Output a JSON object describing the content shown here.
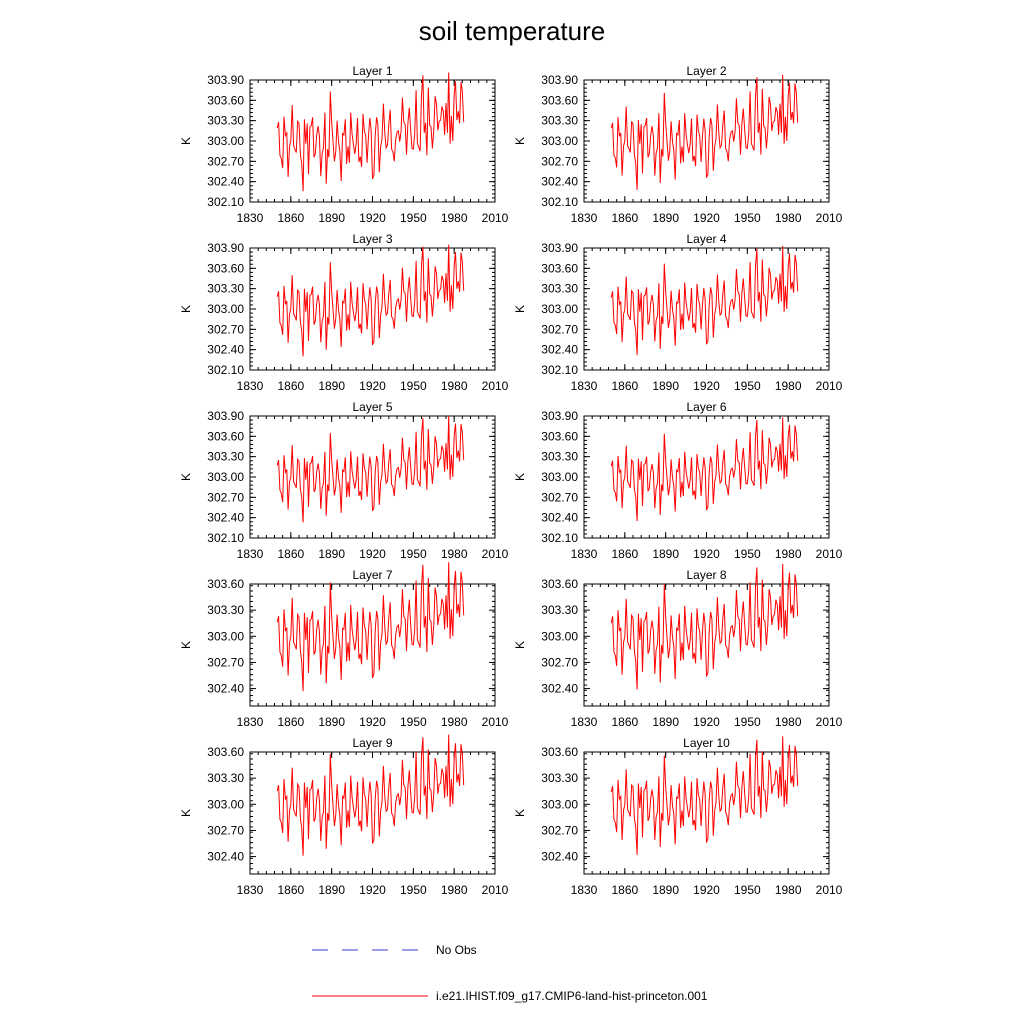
{
  "figure": {
    "title": "soil temperature"
  },
  "legend": {
    "position": "bottom",
    "entries": [
      {
        "label": "No Obs",
        "color": "#3b3bd9",
        "style": "dashed"
      },
      {
        "label": "i.e21.IHIST.f09_g17.CMIP6-land-hist-princeton.001",
        "color": "#ff0000",
        "style": "solid"
      }
    ]
  },
  "chart_data": [
    {
      "type": "line",
      "title": "Layer 1",
      "xlabel": "",
      "ylabel": "K",
      "xlim": [
        1830,
        2010
      ],
      "ylim": [
        302.1,
        303.9
      ],
      "xticks": [
        1830,
        1860,
        1890,
        1920,
        1950,
        1980,
        2010
      ],
      "yticks": [
        "302.10",
        "302.40",
        "302.70",
        "303.00",
        "303.30",
        "303.60",
        "303.90"
      ],
      "grid": false,
      "series": [
        {
          "color": "#ff0000",
          "x": [],
          "values": []
        }
      ]
    },
    {
      "type": "line",
      "title": "Layer 2",
      "xlabel": "",
      "ylabel": "K",
      "xlim": [
        1830,
        2010
      ],
      "ylim": [
        302.1,
        303.9
      ],
      "xticks": [
        1830,
        1860,
        1890,
        1920,
        1950,
        1980,
        2010
      ],
      "yticks": [
        "302.10",
        "302.40",
        "302.70",
        "303.00",
        "303.30",
        "303.60",
        "303.90"
      ],
      "grid": false,
      "series": [
        {
          "color": "#ff0000",
          "x": [],
          "values": []
        }
      ]
    },
    {
      "type": "line",
      "title": "Layer 3",
      "xlabel": "",
      "ylabel": "K",
      "xlim": [
        1830,
        2010
      ],
      "ylim": [
        302.1,
        303.9
      ],
      "xticks": [
        1830,
        1860,
        1890,
        1920,
        1950,
        1980,
        2010
      ],
      "yticks": [
        "302.10",
        "302.40",
        "302.70",
        "303.00",
        "303.30",
        "303.60",
        "303.90"
      ],
      "grid": false,
      "series": [
        {
          "color": "#ff0000",
          "x": [],
          "values": []
        }
      ]
    },
    {
      "type": "line",
      "title": "Layer 4",
      "xlabel": "",
      "ylabel": "K",
      "xlim": [
        1830,
        2010
      ],
      "ylim": [
        302.1,
        303.9
      ],
      "xticks": [
        1830,
        1860,
        1890,
        1920,
        1950,
        1980,
        2010
      ],
      "yticks": [
        "302.10",
        "302.40",
        "302.70",
        "303.00",
        "303.30",
        "303.60",
        "303.90"
      ],
      "grid": false,
      "series": [
        {
          "color": "#ff0000",
          "x": [],
          "values": []
        }
      ]
    },
    {
      "type": "line",
      "title": "Layer 5",
      "xlabel": "",
      "ylabel": "K",
      "xlim": [
        1830,
        2010
      ],
      "ylim": [
        302.1,
        303.9
      ],
      "xticks": [
        1830,
        1860,
        1890,
        1920,
        1950,
        1980,
        2010
      ],
      "yticks": [
        "302.10",
        "302.40",
        "302.70",
        "303.00",
        "303.30",
        "303.60",
        "303.90"
      ],
      "grid": false,
      "series": [
        {
          "color": "#ff0000",
          "x": [],
          "values": []
        }
      ]
    },
    {
      "type": "line",
      "title": "Layer 6",
      "xlabel": "",
      "ylabel": "K",
      "xlim": [
        1830,
        2010
      ],
      "ylim": [
        302.1,
        303.9
      ],
      "xticks": [
        1830,
        1860,
        1890,
        1920,
        1950,
        1980,
        2010
      ],
      "yticks": [
        "302.10",
        "302.40",
        "302.70",
        "303.00",
        "303.30",
        "303.60",
        "303.90"
      ],
      "grid": false,
      "series": [
        {
          "color": "#ff0000",
          "x": [],
          "values": []
        }
      ]
    },
    {
      "type": "line",
      "title": "Layer 7",
      "xlabel": "",
      "ylabel": "K",
      "xlim": [
        1830,
        2010
      ],
      "ylim": [
        302.2,
        303.6
      ],
      "xticks": [
        1830,
        1860,
        1890,
        1920,
        1950,
        1980,
        2010
      ],
      "yticks": [
        "302.40",
        "302.70",
        "303.00",
        "303.30",
        "303.60"
      ],
      "grid": false,
      "series": [
        {
          "color": "#ff0000",
          "x": [],
          "values": []
        }
      ]
    },
    {
      "type": "line",
      "title": "Layer 8",
      "xlabel": "",
      "ylabel": "K",
      "xlim": [
        1830,
        2010
      ],
      "ylim": [
        302.2,
        303.6
      ],
      "xticks": [
        1830,
        1860,
        1890,
        1920,
        1950,
        1980,
        2010
      ],
      "yticks": [
        "302.40",
        "302.70",
        "303.00",
        "303.30",
        "303.60"
      ],
      "grid": false,
      "series": [
        {
          "color": "#ff0000",
          "x": [],
          "values": []
        }
      ]
    },
    {
      "type": "line",
      "title": "Layer 9",
      "xlabel": "",
      "ylabel": "K",
      "xlim": [
        1830,
        2010
      ],
      "ylim": [
        302.2,
        303.6
      ],
      "xticks": [
        1830,
        1860,
        1890,
        1920,
        1950,
        1980,
        2010
      ],
      "yticks": [
        "302.40",
        "302.70",
        "303.00",
        "303.30",
        "303.60"
      ],
      "grid": false,
      "series": [
        {
          "color": "#ff0000",
          "x": [],
          "values": []
        }
      ]
    },
    {
      "type": "line",
      "title": "Layer 10",
      "xlabel": "",
      "ylabel": "K",
      "xlim": [
        1830,
        2010
      ],
      "ylim": [
        302.2,
        303.6
      ],
      "xticks": [
        1830,
        1860,
        1890,
        1920,
        1950,
        1980,
        2010
      ],
      "yticks": [
        "302.40",
        "302.70",
        "303.00",
        "303.30",
        "303.60"
      ],
      "grid": false,
      "series": [
        {
          "color": "#ff0000",
          "x": [],
          "values": []
        }
      ]
    }
  ]
}
